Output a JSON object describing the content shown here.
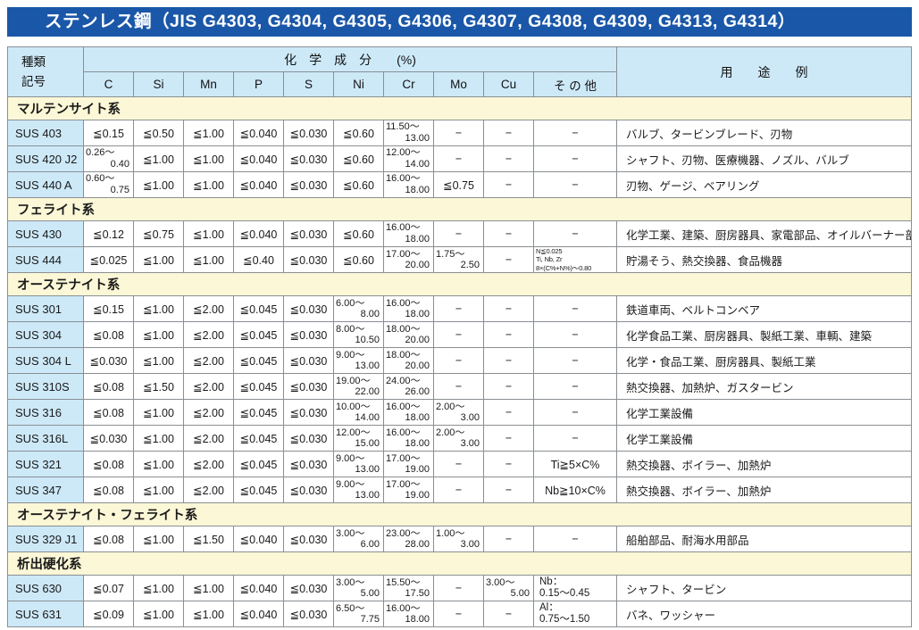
{
  "title": "ステンレス鋼（JIS G4303, G4304, G4305, G4306, G4307, G4308, G4309, G4313, G4314）",
  "colors": {
    "title_bar": "#1a57a8",
    "header_blue": "#cde9f8",
    "section_yellow": "#fbf7d7",
    "border_gray": "#8a8f93"
  },
  "header": {
    "col1_line1": "種類",
    "col1_line2": "記号",
    "chem_group": "化　学　成　分　　(%)",
    "elements": [
      "C",
      "Si",
      "Mn",
      "P",
      "S",
      "Ni",
      "Cr",
      "Mo",
      "Cu",
      "そ の 他"
    ],
    "usage": "用　　途　　例"
  },
  "sections": [
    {
      "name": "マルテンサイト系",
      "rows": [
        {
          "code": "SUS 403",
          "cells": [
            "≦0.15",
            "≦0.50",
            "≦1.00",
            "≦0.040",
            "≦0.030",
            "≦0.60",
            [
              "11.50～",
              "13.00"
            ],
            "−",
            "−",
            "−"
          ],
          "usage": "バルブ、タービンブレード、刃物"
        },
        {
          "code": "SUS 420 J2",
          "cells": [
            [
              "0.26～",
              "0.40"
            ],
            "≦1.00",
            "≦1.00",
            "≦0.040",
            "≦0.030",
            "≦0.60",
            [
              "12.00～",
              "14.00"
            ],
            "−",
            "−",
            "−"
          ],
          "usage": "シャフト、刃物、医療機器、ノズル、バルブ"
        },
        {
          "code": "SUS 440 A",
          "cells": [
            [
              "0.60～",
              "0.75"
            ],
            "≦1.00",
            "≦1.00",
            "≦0.040",
            "≦0.030",
            "≦0.60",
            [
              "16.00～",
              "18.00"
            ],
            "≦0.75",
            "−",
            "−"
          ],
          "usage": "刃物、ゲージ、ベアリング"
        }
      ]
    },
    {
      "name": "フェライト系",
      "rows": [
        {
          "code": "SUS 430",
          "cells": [
            "≦0.12",
            "≦0.75",
            "≦1.00",
            "≦0.040",
            "≦0.030",
            "≦0.60",
            [
              "16.00～",
              "18.00"
            ],
            "−",
            "−",
            "−"
          ],
          "usage": "化学工業、建築、厨房器具、家電部品、オイルバーナー部品"
        },
        {
          "code": "SUS 444",
          "cells": [
            "≦0.025",
            "≦1.00",
            "≦1.00",
            "≦0.40",
            "≦0.030",
            "≦0.60",
            [
              "17.00～",
              "20.00"
            ],
            [
              "1.75～",
              "2.50"
            ],
            "−",
            [
              "N≦0.025",
              "Ti, Nb, Zr",
              "8×(C%+N%)～0.80"
            ]
          ],
          "usage": "貯湯そう、熱交換器、食品機器"
        }
      ]
    },
    {
      "name": "オーステナイト系",
      "rows": [
        {
          "code": "SUS 301",
          "cells": [
            "≦0.15",
            "≦1.00",
            "≦2.00",
            "≦0.045",
            "≦0.030",
            [
              "6.00～",
              "8.00"
            ],
            [
              "16.00～",
              "18.00"
            ],
            "−",
            "−",
            "−"
          ],
          "usage": "鉄道車両、ベルトコンベア"
        },
        {
          "code": "SUS 304",
          "cells": [
            "≦0.08",
            "≦1.00",
            "≦2.00",
            "≦0.045",
            "≦0.030",
            [
              "8.00～",
              "10.50"
            ],
            [
              "18.00～",
              "20.00"
            ],
            "−",
            "−",
            "−"
          ],
          "usage": "化学食品工業、厨房器具、製紙工業、車輌、建築"
        },
        {
          "code": "SUS 304 L",
          "cells": [
            "≦0.030",
            "≦1.00",
            "≦2.00",
            "≦0.045",
            "≦0.030",
            [
              "9.00～",
              "13.00"
            ],
            [
              "18.00～",
              "20.00"
            ],
            "−",
            "−",
            "−"
          ],
          "usage": "化学・食品工業、厨房器具、製紙工業"
        },
        {
          "code": "SUS 310S",
          "cells": [
            "≦0.08",
            "≦1.50",
            "≦2.00",
            "≦0.045",
            "≦0.030",
            [
              "19.00～",
              "22.00"
            ],
            [
              "24.00～",
              "26.00"
            ],
            "−",
            "−",
            "−"
          ],
          "usage": "熱交換器、加熱炉、ガスタービン"
        },
        {
          "code": "SUS 316",
          "cells": [
            "≦0.08",
            "≦1.00",
            "≦2.00",
            "≦0.045",
            "≦0.030",
            [
              "10.00～",
              "14.00"
            ],
            [
              "16.00～",
              "18.00"
            ],
            [
              "2.00～",
              "3.00"
            ],
            "−",
            "−"
          ],
          "usage": "化学工業設備"
        },
        {
          "code": "SUS 316L",
          "cells": [
            "≦0.030",
            "≦1.00",
            "≦2.00",
            "≦0.045",
            "≦0.030",
            [
              "12.00～",
              "15.00"
            ],
            [
              "16.00～",
              "18.00"
            ],
            [
              "2.00～",
              "3.00"
            ],
            "−",
            "−"
          ],
          "usage": "化学工業設備"
        },
        {
          "code": "SUS 321",
          "cells": [
            "≦0.08",
            "≦1.00",
            "≦2.00",
            "≦0.045",
            "≦0.030",
            [
              "9.00～",
              "13.00"
            ],
            [
              "17.00～",
              "19.00"
            ],
            "−",
            "−",
            "Ti≧5×C%"
          ],
          "usage": "熱交換器、ボイラー、加熱炉"
        },
        {
          "code": "SUS 347",
          "cells": [
            "≦0.08",
            "≦1.00",
            "≦2.00",
            "≦0.045",
            "≦0.030",
            [
              "9.00～",
              "13.00"
            ],
            [
              "17.00～",
              "19.00"
            ],
            "−",
            "−",
            "Nb≧10×C%"
          ],
          "usage": "熱交換器、ボイラー、加熱炉"
        }
      ]
    },
    {
      "name": "オーステナイト・フェライト系",
      "rows": [
        {
          "code": "SUS 329 J1",
          "cells": [
            "≦0.08",
            "≦1.00",
            "≦1.50",
            "≦0.040",
            "≦0.030",
            [
              "3.00～",
              "6.00"
            ],
            [
              "23.00～",
              "28.00"
            ],
            [
              "1.00～",
              "3.00"
            ],
            "−",
            "−"
          ],
          "usage": "船舶部品、耐海水用部品"
        }
      ]
    },
    {
      "name": "析出硬化系",
      "rows": [
        {
          "code": "SUS 630",
          "cells": [
            "≦0.07",
            "≦1.00",
            "≦1.00",
            "≦0.040",
            "≦0.030",
            [
              "3.00～",
              "5.00"
            ],
            [
              "15.50～",
              "17.50"
            ],
            "−",
            [
              "3.00～",
              "5.00"
            ],
            [
              "Nb：",
              "0.15～0.45"
            ]
          ],
          "usage": "シャフト、タービン"
        },
        {
          "code": "SUS 631",
          "cells": [
            "≦0.09",
            "≦1.00",
            "≦1.00",
            "≦0.040",
            "≦0.030",
            [
              "6.50～",
              "7.75"
            ],
            [
              "16.00～",
              "18.00"
            ],
            "−",
            "−",
            [
              "Al：",
              "0.75～1.50"
            ]
          ],
          "usage": "バネ、ワッシャー"
        }
      ]
    }
  ]
}
